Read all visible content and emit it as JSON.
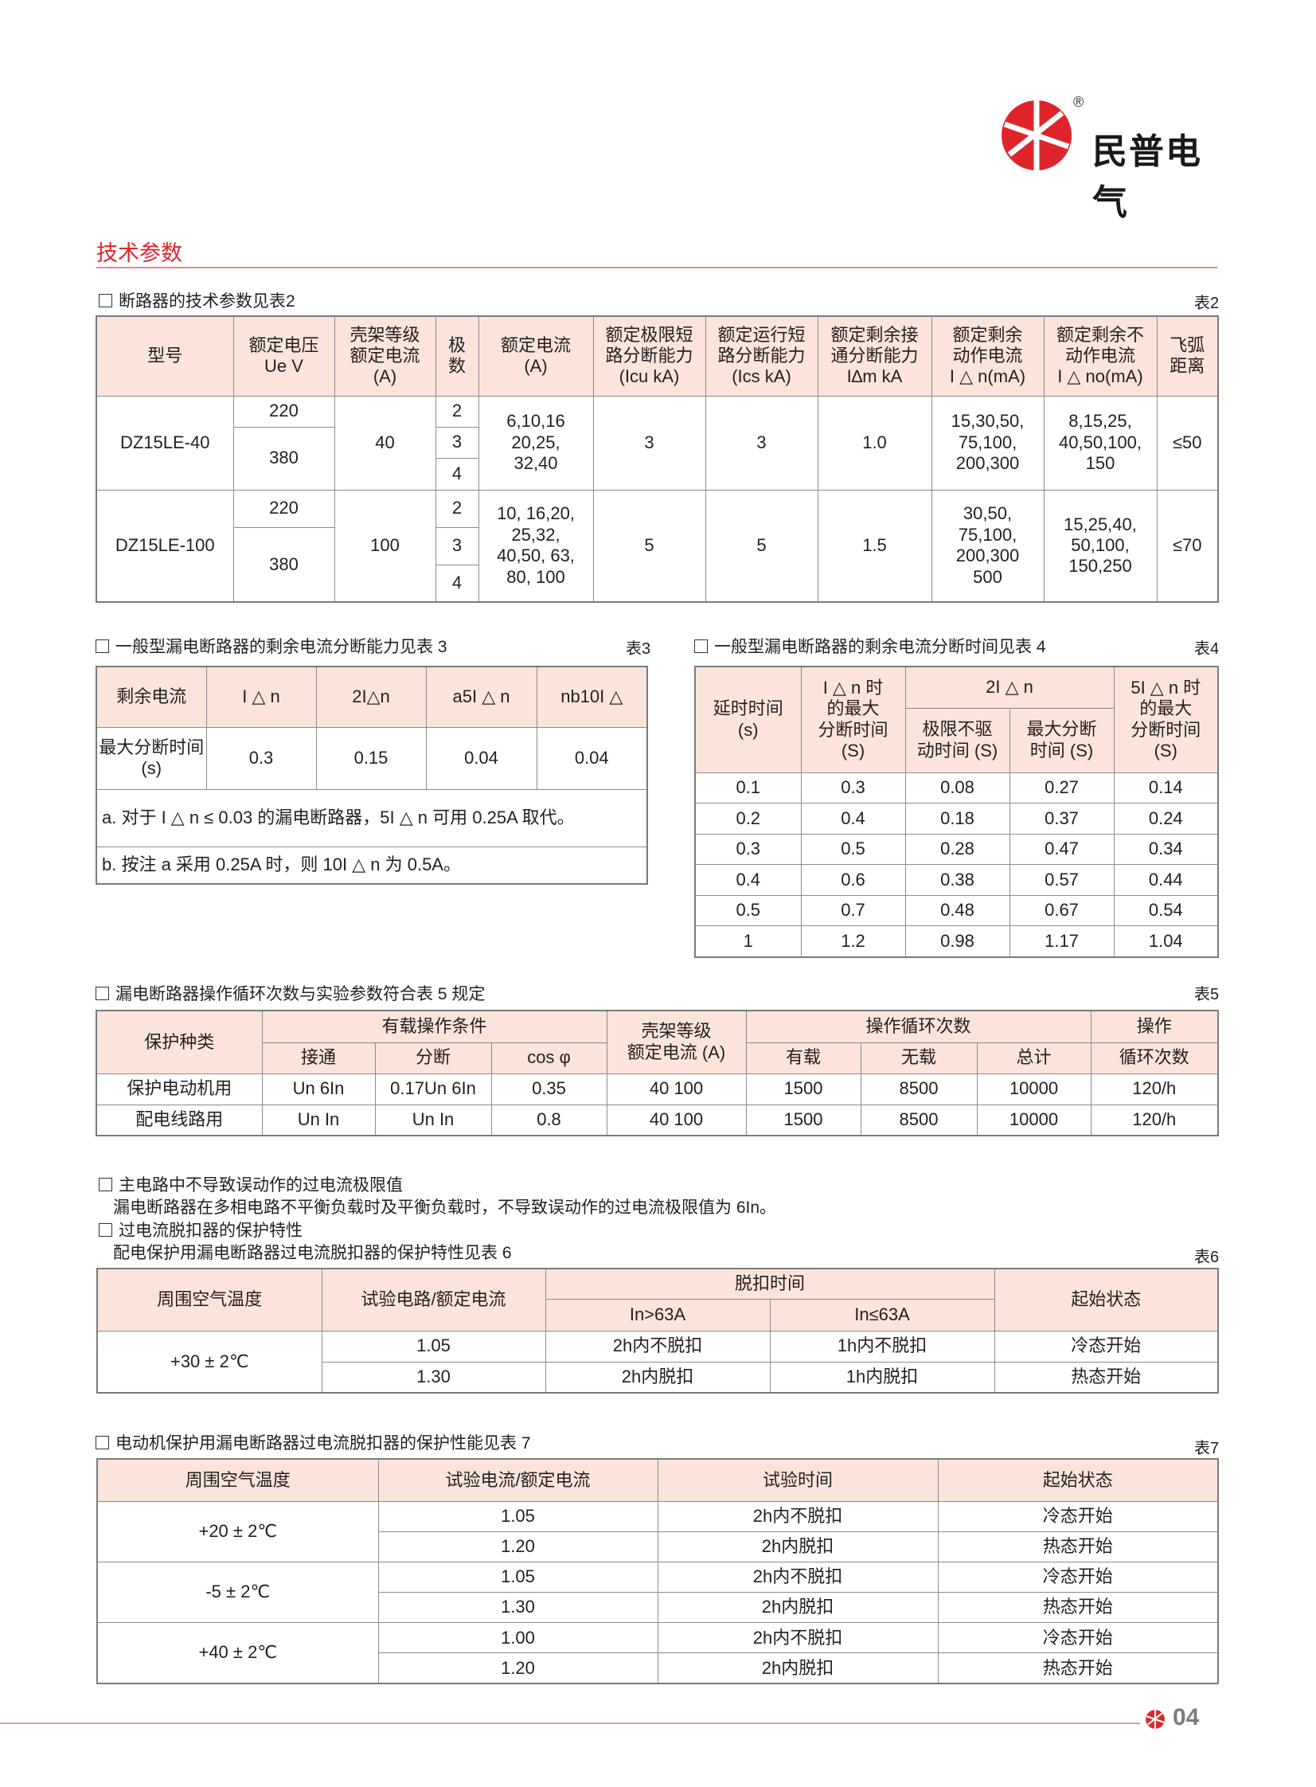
{
  "brand": {
    "name": "民普电气",
    "registered": "®",
    "color": "#e0242b"
  },
  "section_title": "技术参数",
  "t2": {
    "caption": "断路器的技术参数见表2",
    "label": "表2",
    "h": [
      "型号",
      "额定电压\nUe   V",
      "壳架等级\n额定电流\n(A)",
      "极\n数",
      "额定电流\n(A)",
      "额定极限短\n路分断能力\n(Icu kA)",
      "额定运行短\n路分断能力\n(Ics kA)",
      "额定剩余接\n通分断能力\nI∆m kA",
      "额定剩余\n动作电流\nI △ n(mA)",
      "额定剩余不\n动作电流\nI △ no(mA)",
      "飞弧\n距离"
    ],
    "rows": [
      {
        "model": "DZ15LE-40",
        "v": [
          "220",
          "380"
        ],
        "frame": "40",
        "poles": [
          "2",
          "3",
          "4"
        ],
        "current": "6,10,16\n20,25,\n32,40",
        "icu": "3",
        "ics": "3",
        "im": "1.0",
        "idn": "15,30,50,\n75,100,\n200,300",
        "idno": "8,15,25,\n40,50,100,\n150",
        "arc": "≤50"
      },
      {
        "model": "DZ15LE-100",
        "v": [
          "220",
          "380"
        ],
        "frame": "100",
        "poles": [
          "2",
          "3",
          "4"
        ],
        "current": "10, 16,20,\n25,32,\n40,50, 63,\n80, 100",
        "icu": "5",
        "ics": "5",
        "im": "1.5",
        "idn": "30,50,\n75,100,\n200,300\n500",
        "idno": "15,25,40,\n50,100,\n150,250",
        "arc": "≤70"
      }
    ]
  },
  "t3": {
    "caption": "一般型漏电断路器的剩余电流分断能力见表 3",
    "label": "表3",
    "h": [
      "剩余电流",
      "I △ n",
      "2I△n",
      "a5I △ n",
      "nb10I △"
    ],
    "row": [
      "最大分断时间 (s)",
      "0.3",
      "0.15",
      "0.04",
      "0.04"
    ],
    "note_a": "a. 对于 I △ n ≤ 0.03 的漏电断路器，5I △ n 可用 0.25A 取代。",
    "note_b": "b. 按注 a 采用 0.25A 时，则 10I △ n 为 0.5A。"
  },
  "t4": {
    "caption": "一般型漏电断路器的剩余电流分断时间见表 4",
    "label": "表4",
    "h": [
      "延时时间\n(s)",
      "I △ n 时\n的最大\n分断时间\n(S)",
      "2I △ n",
      "5I △ n 时\n的最大\n分断时间\n(S)"
    ],
    "sub": [
      "极限不驱\n动时间 (S)",
      "最大分断\n时间 (S)"
    ],
    "rows": [
      [
        "0.1",
        "0.3",
        "0.08",
        "0.27",
        "0.14"
      ],
      [
        "0.2",
        "0.4",
        "0.18",
        "0.37",
        "0.24"
      ],
      [
        "0.3",
        "0.5",
        "0.28",
        "0.47",
        "0.34"
      ],
      [
        "0.4",
        "0.6",
        "0.38",
        "0.57",
        "0.44"
      ],
      [
        "0.5",
        "0.7",
        "0.48",
        "0.67",
        "0.54"
      ],
      [
        "1",
        "1.2",
        "0.98",
        "1.17",
        "1.04"
      ]
    ]
  },
  "t5": {
    "caption": "漏电断路器操作循环次数与实验参数符合表 5 规定",
    "label": "表5",
    "h": [
      "保护种类",
      "有载操作条件",
      "壳架等级\n额定电流 (A)",
      "操作循环次数",
      "操作"
    ],
    "sub": [
      "接通",
      "分断",
      "cos φ",
      "有载",
      "无载",
      "总计",
      "循环次数"
    ],
    "rows": [
      [
        "保护电动机用",
        "Un  6In",
        "0.17Un  6In",
        "0.35",
        "40  100",
        "1500",
        "8500",
        "10000",
        "120/h"
      ],
      [
        "配电线路用",
        "Un  In",
        "Un     In",
        "0.8",
        "40  100",
        "1500",
        "8500",
        "10000",
        "120/h"
      ]
    ]
  },
  "text": {
    "q1": "主电路中不导致误动作的过电流极限值",
    "p1": "漏电断路器在多相电路不平衡负载时及平衡负载时，不导致误动作的过电流极限值为 6In。",
    "q2": "过电流脱扣器的保护特性",
    "p2": "配电保护用漏电断路器过电流脱扣器的保护特性见表 6",
    "label6": "表6"
  },
  "t6": {
    "h": [
      "周围空气温度",
      "试验电路/额定电流",
      "脱扣时间",
      "起始状态"
    ],
    "sub": [
      "In>63A",
      "In≤63A"
    ],
    "temp": "+30 ± 2℃",
    "rows": [
      [
        "1.05",
        "2h内不脱扣",
        "1h内不脱扣",
        "冷态开始"
      ],
      [
        "1.30",
        "2h内脱扣",
        "1h内脱扣",
        "热态开始"
      ]
    ]
  },
  "t7": {
    "caption": "电动机保护用漏电断路器过电流脱扣器的保护性能见表 7",
    "label": "表7",
    "h": [
      "周围空气温度",
      "试验电流/额定电流",
      "试验时间",
      "起始状态"
    ],
    "groups": [
      {
        "temp": "+20 ± 2℃",
        "rows": [
          [
            "1.05",
            "2h内不脱扣",
            "冷态开始"
          ],
          [
            "1.20",
            "2h内脱扣",
            "热态开始"
          ]
        ]
      },
      {
        "temp": "-5 ± 2℃",
        "rows": [
          [
            "1.05",
            "2h内不脱扣",
            "冷态开始"
          ],
          [
            "1.30",
            "2h内脱扣",
            "热态开始"
          ]
        ]
      },
      {
        "temp": "+40 ± 2℃",
        "rows": [
          [
            "1.00",
            "2h内不脱扣",
            "冷态开始"
          ],
          [
            "1.20",
            "2h内脱扣",
            "热态开始"
          ]
        ]
      }
    ]
  },
  "footer": {
    "page": "04"
  }
}
